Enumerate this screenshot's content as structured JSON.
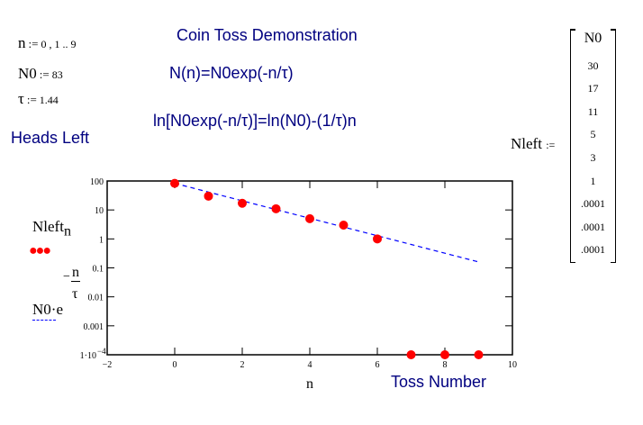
{
  "definitions": {
    "n": {
      "name": "n",
      "op": ":=",
      "value": "0 , 1 .. 9"
    },
    "N0": {
      "name": "N0",
      "op": ":=",
      "value": "83"
    },
    "tau": {
      "name": "τ",
      "op": ":=",
      "value": "1.44"
    }
  },
  "title": "Coin Toss Demonstration",
  "formula1": "N(n)=N0exp(-n/τ)",
  "formula2": "ln[N0exp(-n/τ)]=ln(N0)-(1/τ)n",
  "heads_left": "Heads Left",
  "nleft": {
    "name": "Nleft",
    "op": ":=",
    "values": [
      "N0",
      "30",
      "17",
      "11",
      "5",
      "3",
      "1",
      ".0001",
      ".0001",
      ".0001"
    ]
  },
  "legend": {
    "series1": {
      "name": "Nleft",
      "sub": "n"
    },
    "series2": {
      "name": "N0·e",
      "exp_num": "n",
      "exp_den": "τ",
      "exp_sign": "−"
    }
  },
  "xaxis_label": "n",
  "toss_number": "Toss Number",
  "colors": {
    "points": "#ff0000",
    "line": "#0000ff",
    "text": "#000080"
  },
  "chart_data": {
    "type": "scatter",
    "xlim": [
      -2,
      10
    ],
    "ylim": [
      0.0001,
      100
    ],
    "yscale": "log",
    "x_ticks": [
      "−2",
      "0",
      "2",
      "4",
      "6",
      "8",
      "10"
    ],
    "y_ticks": [
      "100",
      "10",
      "1",
      "0.1",
      "0.01",
      "0.001",
      "1·10"
    ],
    "y_tick_last_exp": "−4",
    "xlabel": "n",
    "series": [
      {
        "name": "Nleft_n",
        "style": "points",
        "x": [
          0,
          1,
          2,
          3,
          4,
          5,
          6,
          7,
          8,
          9
        ],
        "y": [
          83,
          30,
          17,
          11,
          5,
          3,
          1,
          0.0001,
          0.0001,
          0.0001
        ]
      },
      {
        "name": "N0·e^(−n/τ)",
        "style": "dashed",
        "N0": 83,
        "tau": 1.44,
        "x": [
          0,
          9
        ]
      }
    ]
  }
}
